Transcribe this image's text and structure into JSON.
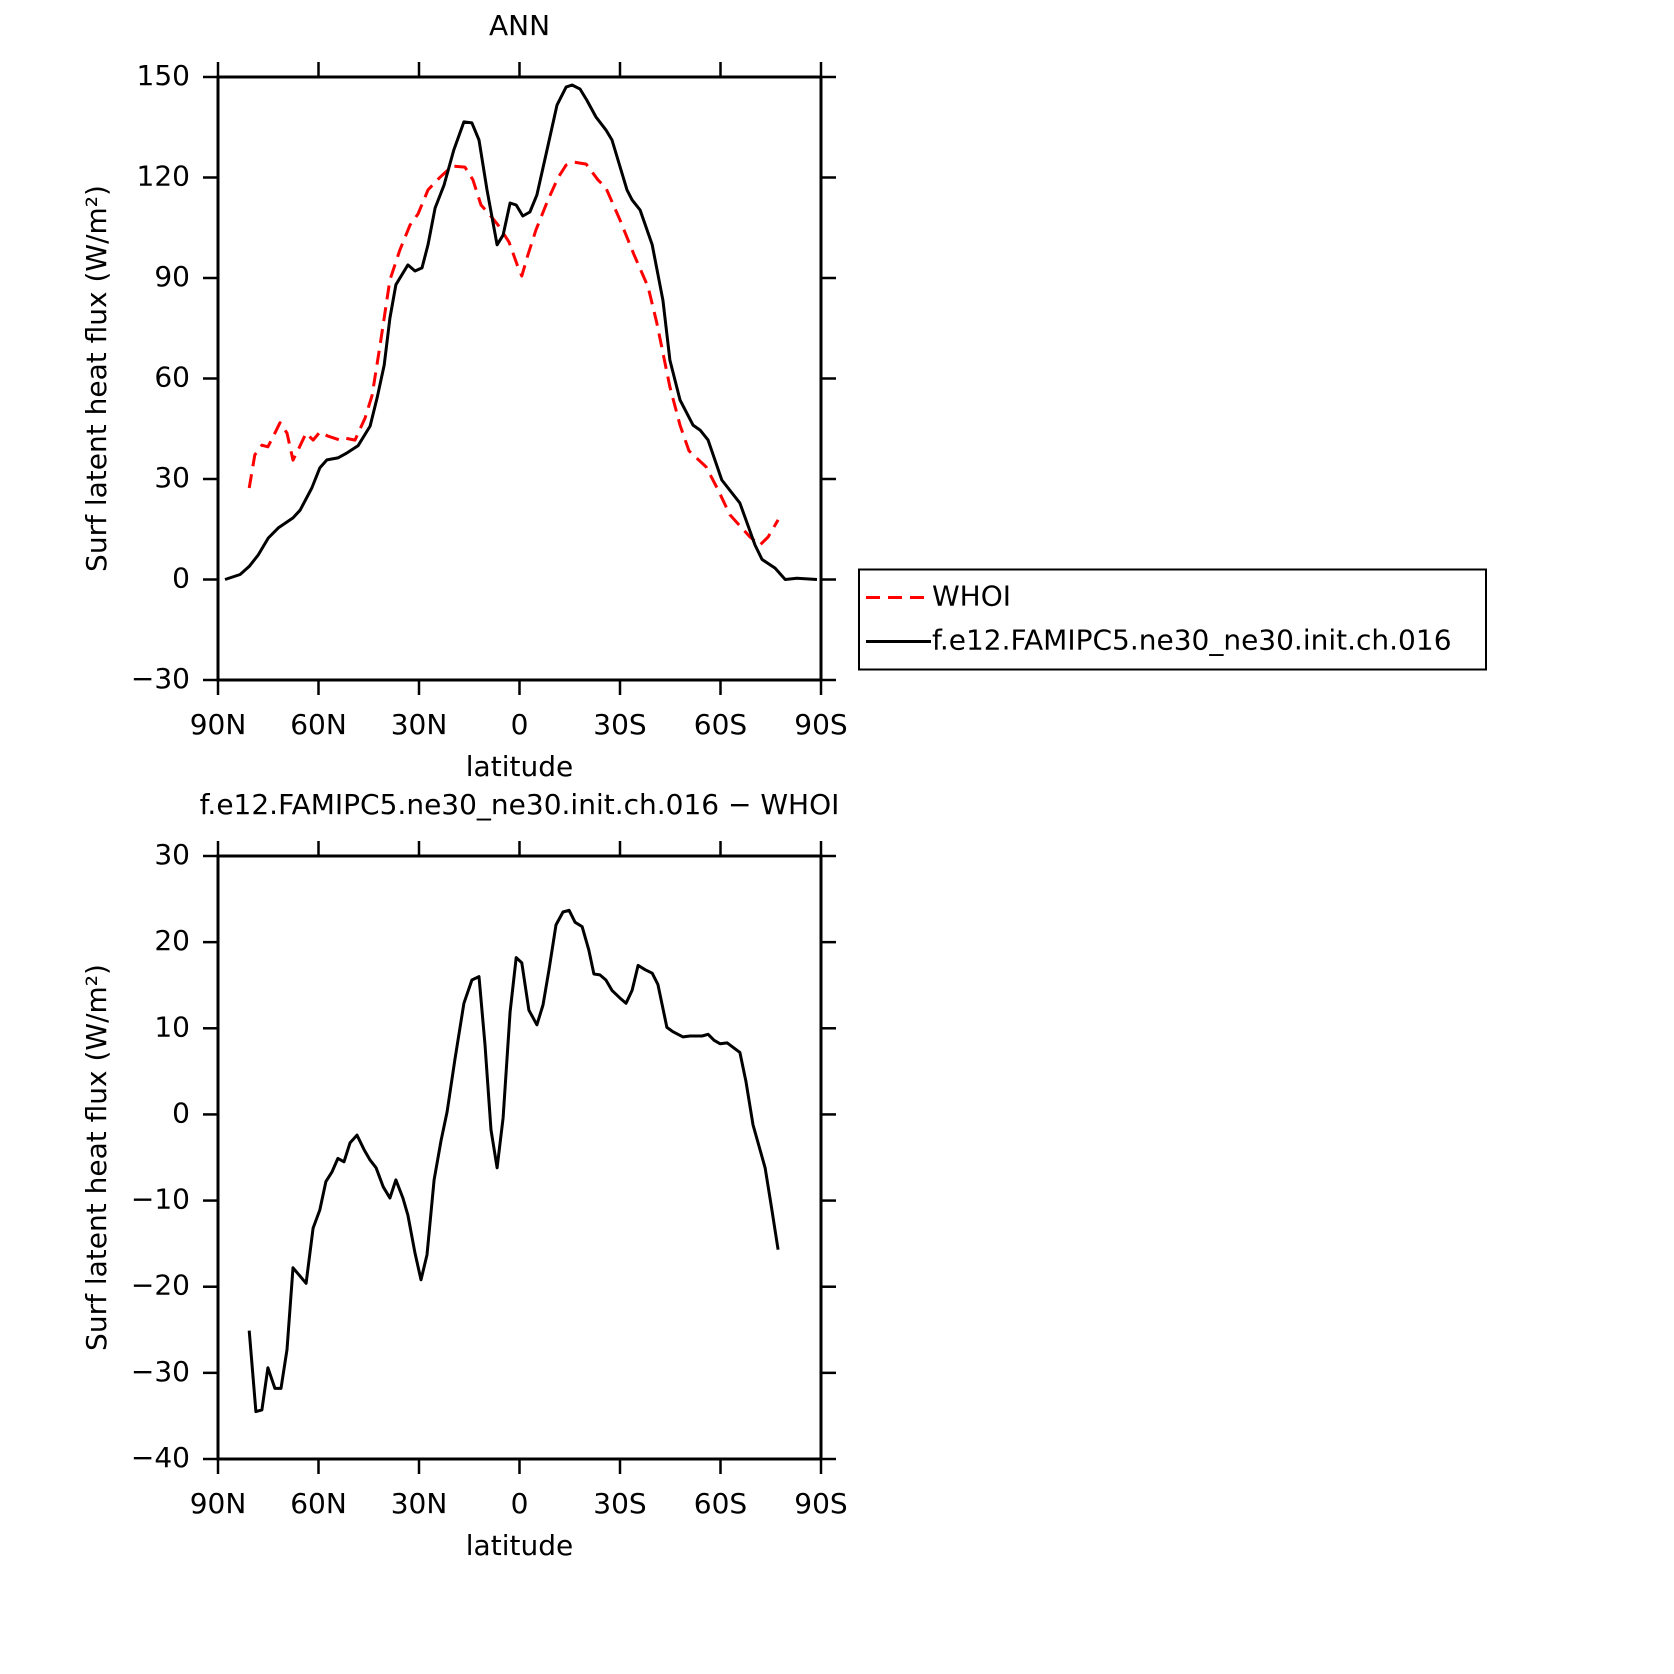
{
  "chart_data": [
    {
      "type": "line",
      "title": "ANN",
      "xlabel": "latitude",
      "ylabel": "Surf latent heat flux (W/m²)",
      "xlim": [
        90,
        -90
      ],
      "xticks": [
        {
          "value": 90,
          "label": "90N"
        },
        {
          "value": 60,
          "label": "60N"
        },
        {
          "value": 30,
          "label": "30N"
        },
        0,
        {
          "value": -30,
          "label": "30S"
        },
        {
          "value": -60,
          "label": "60S"
        },
        {
          "value": -90,
          "label": "90S"
        }
      ],
      "ylim": [
        -30,
        150
      ],
      "yticks": [
        {
          "value": -30,
          "label": "−30"
        },
        0,
        30,
        60,
        90,
        120,
        150
      ],
      "legend": "right",
      "series": [
        {
          "name": "WHOI",
          "color": "#ff0000",
          "dashed": true,
          "x": [
            80.7,
            79,
            76.9,
            75.1,
            73.3,
            71.5,
            69.4,
            67.6,
            65.8,
            63.7,
            61.6,
            59.6,
            57.2,
            53.6,
            52.1,
            49.1,
            46.1,
            44,
            41.6,
            38.7,
            35.7,
            32.7,
            30.3,
            27.3,
            23.7,
            20.1,
            16.3,
            13.9,
            11.5,
            8.8,
            6.4,
            3.1,
            0.7,
            -0.7,
            -2.5,
            -4.9,
            -8.5,
            -11.5,
            -13.9,
            -16.3,
            -19.9,
            -23.4,
            -25.8,
            -30,
            -34.2,
            -38.4,
            -41,
            -44.9,
            -47.9,
            -50.6,
            -55.7,
            -59.3,
            -62.8,
            -68.8,
            -71.8,
            -74.2,
            -77.2
          ],
          "values": [
            27.3,
            37.2,
            40.1,
            39.6,
            43.1,
            46.8,
            43.7,
            35.6,
            39.3,
            43.7,
            41.6,
            44,
            42.8,
            41.6,
            42.2,
            41.6,
            48.2,
            55,
            70,
            89.4,
            98.4,
            105.8,
            109.1,
            116.3,
            120.1,
            123.4,
            123.1,
            119.3,
            111.8,
            108.8,
            105.8,
            100.7,
            93.9,
            90.6,
            96.9,
            104.3,
            113.3,
            119.9,
            123.7,
            124.6,
            124,
            119.3,
            116.9,
            107.3,
            96.9,
            87.3,
            76.6,
            57.5,
            46.1,
            38.4,
            33.6,
            26.7,
            19.3,
            12.7,
            10.3,
            12.7,
            17.8
          ]
        },
        {
          "name": "f.e12.FAMIPC5.ne30_ne30.init.ch.016",
          "color": "#000000",
          "dashed": false,
          "x": [
            87.9,
            83.4,
            80.7,
            78,
            75,
            72,
            67.6,
            65.5,
            62,
            59.6,
            57.5,
            54.2,
            51.5,
            48.2,
            44.6,
            42.5,
            40.4,
            38.7,
            36.9,
            33.3,
            31.2,
            29.1,
            27.3,
            25.2,
            22.5,
            19.6,
            16.6,
            14.2,
            12.1,
            9.7,
            6.7,
            4.9,
            2.8,
            1,
            -1,
            -3.1,
            -5.2,
            -8.2,
            -11.2,
            -13.9,
            -15.7,
            -18.1,
            -20.1,
            -22.8,
            -25.8,
            -27.6,
            -32.1,
            -33.6,
            -36,
            -39.6,
            -42.8,
            -44.9,
            -47.9,
            -51.8,
            -53.9,
            -56.3,
            -60.4,
            -65.8,
            -70.3,
            -72.4,
            -76.3,
            -79.3,
            -82.8,
            -88.8
          ],
          "values": [
            0,
            1.5,
            3.9,
            7.3,
            12.4,
            15.4,
            18.4,
            20.7,
            27.3,
            33.3,
            35.7,
            36.3,
            37.8,
            39.9,
            45.8,
            54.2,
            64,
            78,
            88,
            93.9,
            92.1,
            93,
            99.9,
            110.9,
            117.8,
            128.2,
            136.6,
            136.3,
            131.2,
            116.3,
            99.9,
            102.8,
            112.4,
            111.8,
            108.5,
            109.7,
            114.8,
            128.2,
            141.6,
            147,
            147.6,
            146.4,
            143.1,
            138.1,
            134.2,
            131.2,
            116.3,
            113.3,
            110.3,
            99.9,
            83.4,
            65.5,
            53.6,
            46.1,
            44.6,
            41.6,
            29.7,
            22.8,
            10.3,
            6,
            3.4,
            0,
            0.4,
            0
          ]
        }
      ]
    },
    {
      "type": "line",
      "title": "f.e12.FAMIPC5.ne30_ne30.init.ch.016 − WHOI",
      "xlabel": "latitude",
      "ylabel": "Surf latent heat flux (W/m²)",
      "xlim": [
        90,
        -90
      ],
      "xticks": [
        {
          "value": 90,
          "label": "90N"
        },
        {
          "value": 60,
          "label": "60N"
        },
        {
          "value": 30,
          "label": "30N"
        },
        0,
        {
          "value": -30,
          "label": "30S"
        },
        {
          "value": -60,
          "label": "60S"
        },
        {
          "value": -90,
          "label": "90S"
        }
      ],
      "ylim": [
        -40,
        30
      ],
      "yticks": [
        {
          "value": -40,
          "label": "−40"
        },
        {
          "value": -30,
          "label": "−30"
        },
        {
          "value": -20,
          "label": "−20"
        },
        {
          "value": -10,
          "label": "−10"
        },
        0,
        10,
        20,
        30
      ],
      "series": [
        {
          "color": "#000000",
          "dashed": false,
          "x": [
            80.7,
            78.7,
            76.9,
            75.1,
            73,
            71.2,
            69.4,
            67.6,
            63.7,
            61.6,
            59.6,
            57.8,
            56,
            54.2,
            52.4,
            50.6,
            48.5,
            46.4,
            44.6,
            42.8,
            40.7,
            38.7,
            36.9,
            34.8,
            33.3,
            31.2,
            29.4,
            27.6,
            25.5,
            23.4,
            21.6,
            19.3,
            16.6,
            14.2,
            12.1,
            10.3,
            8.5,
            6.7,
            4.9,
            2.8,
            1,
            -0.7,
            -2.8,
            -5.2,
            -7,
            -8.8,
            -10.9,
            -13,
            -14.8,
            -16.6,
            -18.7,
            -20.7,
            -22.2,
            -24,
            -25.8,
            -27.6,
            -30,
            -31.8,
            -33.6,
            -35.4,
            -37.5,
            -39.6,
            -41.3,
            -44,
            -45.8,
            -48.8,
            -50.9,
            -54.5,
            -56.3,
            -58.1,
            -59.9,
            -62,
            -65.8,
            -67.6,
            -69.7,
            -73.3,
            -75.1,
            -77.2
          ],
          "values": [
            -25.1,
            -34.5,
            -34.3,
            -29.4,
            -31.8,
            -31.8,
            -27.3,
            -17.8,
            -19.6,
            -13.2,
            -11.1,
            -7.8,
            -6.7,
            -5.1,
            -5.5,
            -3.3,
            -2.4,
            -4.1,
            -5.3,
            -6.2,
            -8.4,
            -9.7,
            -7.6,
            -9.7,
            -11.7,
            -16.1,
            -19.2,
            -16.3,
            -7.6,
            -3,
            0.3,
            6.3,
            12.9,
            15.6,
            16,
            8.1,
            -1.8,
            -6.2,
            -0.4,
            11.9,
            18.2,
            17.6,
            12.1,
            10.4,
            12.7,
            16.8,
            22,
            23.5,
            23.7,
            22.3,
            21.8,
            19.1,
            16.3,
            16.2,
            15.6,
            14.4,
            13.5,
            12.9,
            14.4,
            17.3,
            16.8,
            16.4,
            15.1,
            10.1,
            9.6,
            9,
            9.1,
            9.1,
            9.3,
            8.6,
            8.2,
            8.3,
            7.2,
            3.8,
            -1.2,
            -6.2,
            -10.5,
            -15.7
          ]
        }
      ]
    }
  ]
}
